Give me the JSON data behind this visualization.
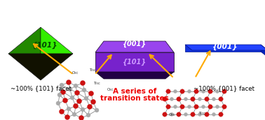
{
  "bg_color": "#ffffff",
  "left_bipyramid_top_color": "#33ee00",
  "left_bipyramid_top_dark": "#228800",
  "left_bipyramid_bot_color": "#111100",
  "middle_top_face_color": "#9944ee",
  "middle_body_color": "#7722cc",
  "middle_bottom_color": "#220044",
  "right_top_face_color": "#2244ff",
  "right_side_color": "#0022bb",
  "right_front_color": "#1133dd",
  "left_label": "{101}",
  "left_sublabel": "~100% {101} facet",
  "middle_label_top": "{001}",
  "middle_label_bottom": "{101}",
  "middle_sublabel_line1": "A series of",
  "middle_sublabel_line2": "transition states",
  "right_label": "{001}",
  "right_sublabel": "~100% {001} facet",
  "arrow_color": "#ffaa00",
  "label_color_left": "#004400",
  "label_color_middle_top": "#ffffff",
  "label_color_middle_bottom": "#110033",
  "label_color_right": "#ffffff",
  "sublabel_color_sides": "#000000",
  "sublabel_color_middle": "#ee0000"
}
